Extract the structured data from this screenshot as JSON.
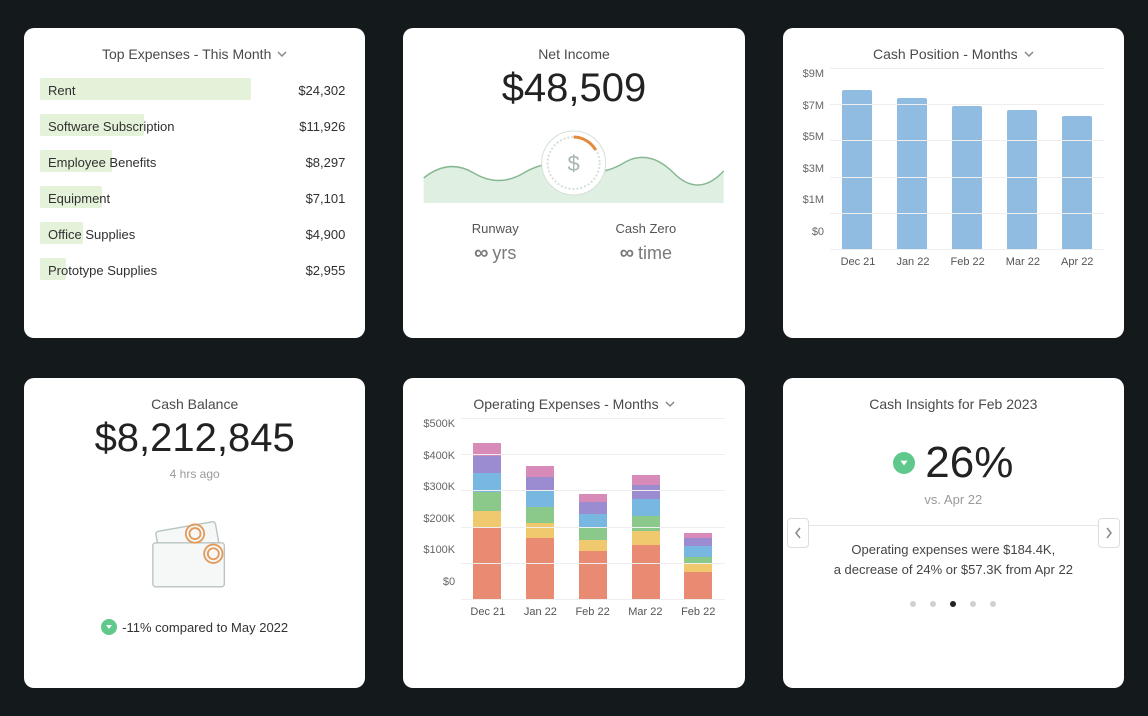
{
  "layout": {
    "bg": "#14191c",
    "card_bg": "#ffffff",
    "card_radius": 10
  },
  "top_expenses": {
    "title": "Top Expenses - This Month",
    "bar_color": "#e5f2da",
    "max_value": 24302,
    "items": [
      {
        "label": "Rent",
        "value": "$24,302",
        "raw": 24302
      },
      {
        "label": "Software Subscription",
        "value": "$11,926",
        "raw": 11926
      },
      {
        "label": "Employee Benefits",
        "value": "$8,297",
        "raw": 8297
      },
      {
        "label": "Equipment",
        "value": "$7,101",
        "raw": 7101
      },
      {
        "label": "Office Supplies",
        "value": "$4,900",
        "raw": 4900
      },
      {
        "label": "Prototype Supplies",
        "value": "$2,955",
        "raw": 2955
      }
    ]
  },
  "net_income": {
    "title": "Net Income",
    "value": "$48,509",
    "chart": {
      "fill": "#dff0e3",
      "stroke": "#88b892",
      "badge_stroke": "#e08a3a",
      "badge_text": "$"
    },
    "runway": {
      "label": "Runway",
      "value_suffix": "yrs"
    },
    "cash_zero": {
      "label": "Cash Zero",
      "value_suffix": "time"
    }
  },
  "cash_position": {
    "title": "Cash Position - Months",
    "type": "bar",
    "y_ticks": [
      "$9M",
      "$7M",
      "$5M",
      "$3M",
      "$1M",
      "$0"
    ],
    "ylim": [
      0,
      9
    ],
    "x_labels": [
      "Dec 21",
      "Jan 22",
      "Feb 22",
      "Mar 22",
      "Apr 22"
    ],
    "values": [
      7.9,
      7.5,
      7.1,
      6.9,
      6.6
    ],
    "bar_color": "#8fbce0",
    "grid_color": "#eeeeee"
  },
  "cash_balance": {
    "title": "Cash Balance",
    "value": "$8,212,845",
    "timestamp": "4 hrs ago",
    "footer_text": "-11% compared to May 2022",
    "badge_bg": "#5fc88a",
    "art": {
      "stroke": "#b8c4c0",
      "accent": "#e39a5a"
    }
  },
  "operating_expenses": {
    "title": "Operating Expenses - Months",
    "type": "stacked_bar",
    "y_ticks": [
      "$500K",
      "$400K",
      "$300K",
      "$200K",
      "$100K",
      "$0"
    ],
    "ylim": [
      0,
      500
    ],
    "x_labels": [
      "Dec 21",
      "Jan 22",
      "Feb 22",
      "Mar 22",
      "Feb 22"
    ],
    "seg_colors": [
      "#e88b72",
      "#f0c96e",
      "#8bc98b",
      "#78b8e0",
      "#9b8bd0",
      "#d88bb8"
    ],
    "stacks": [
      [
        210,
        50,
        55,
        55,
        50,
        40
      ],
      [
        180,
        45,
        45,
        50,
        40,
        30
      ],
      [
        140,
        35,
        35,
        40,
        35,
        25
      ],
      [
        160,
        40,
        45,
        50,
        40,
        30
      ],
      [
        80,
        25,
        20,
        30,
        25,
        15
      ]
    ],
    "grid_color": "#eeeeee"
  },
  "cash_insights": {
    "title": "Cash Insights for Feb 2023",
    "badge_bg": "#5fc88a",
    "percent": "26%",
    "vs_text": "vs. Apr 22",
    "text_line1": "Operating expenses were $184.4K,",
    "text_line2": "a decrease of 24% or $57.3K from Apr 22",
    "dots": 5,
    "active_dot": 2
  }
}
